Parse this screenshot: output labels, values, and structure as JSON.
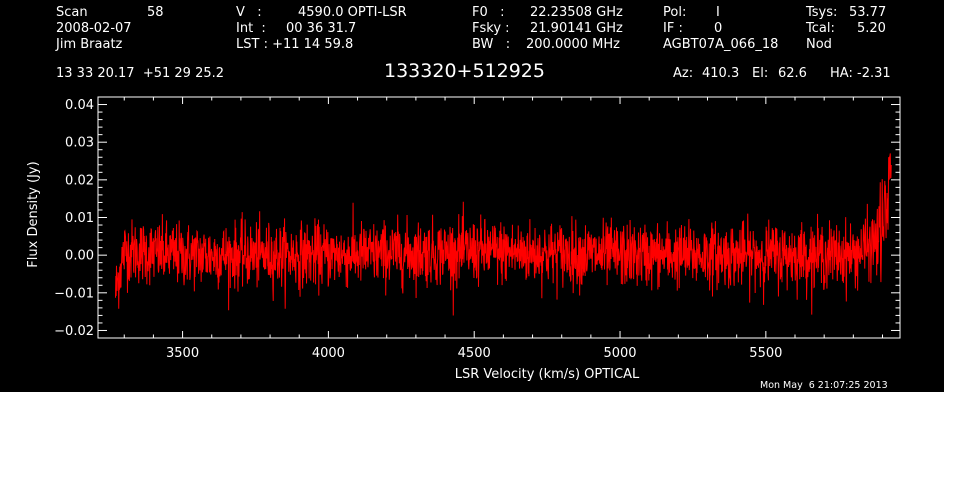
{
  "header": {
    "scan_label": "Scan",
    "scan_value": "58",
    "date": "2008-02-07",
    "observer": "Jim Braatz",
    "v_label": "V   :",
    "v_value": "4590.0 OPTI-LSR",
    "int_label": "Int  :",
    "int_value": "00 36 31.7",
    "lst_label": "LST : +11 14 59.8",
    "f0_label": "F0   :",
    "f0_value": "22.23508 GHz",
    "fsky_label": "Fsky :",
    "fsky_value": "21.90141 GHz",
    "bw_label": "BW   :",
    "bw_value": "200.0000 MHz",
    "pol_label": "Pol:",
    "pol_value": "I",
    "if_label": "IF :",
    "if_value": "0",
    "project": "AGBT07A_066_18",
    "tsys_label": "Tsys:",
    "tsys_value": "53.77",
    "tcal_label": "Tcal:",
    "tcal_value": "5.20",
    "procedure": "Nod",
    "coords": "13 33 20.17  +51 29 25.2",
    "source": "133320+512925",
    "az_label": "Az:",
    "az_value": "410.3",
    "el_label": "El:",
    "el_value": "62.6",
    "ha_label": "HA:",
    "ha_value": "-2.31"
  },
  "timestamp": "Mon May  6 21:07:25 2013",
  "colors": {
    "background": "#000000",
    "axes": "#ffffff",
    "trace": "#ff0000"
  },
  "chart_data": {
    "type": "line",
    "xlabel": "LSR Velocity (km/s) OPTICAL",
    "ylabel": "Flux Density (Jy)",
    "xlim": [
      3210,
      5960
    ],
    "ylim": [
      -0.022,
      0.042
    ],
    "x_ticks": [
      3500,
      4000,
      4500,
      5000,
      5500
    ],
    "x_tick_labels": [
      "3500",
      "4000",
      "4500",
      "5000",
      "5500"
    ],
    "y_ticks": [
      -0.02,
      -0.01,
      0.0,
      0.01,
      0.02,
      0.03,
      0.04
    ],
    "y_tick_labels": [
      "−0.02",
      "−0.01",
      "0.00",
      "0.01",
      "0.02",
      "0.03",
      "0.04"
    ],
    "grid": false,
    "series": [
      {
        "color": "#ff0000",
        "x_start": 3270,
        "x_end": 5930,
        "noise_rms": 0.0042,
        "envelope": [
          [
            3270,
            -0.01
          ],
          [
            3285,
            -0.004
          ],
          [
            3300,
            0.001
          ],
          [
            3330,
            0.001
          ],
          [
            3500,
            0.0
          ],
          [
            4000,
            0.0
          ],
          [
            4500,
            0.001
          ],
          [
            5000,
            0.0
          ],
          [
            5500,
            0.0
          ],
          [
            5800,
            0.0
          ],
          [
            5870,
            0.003
          ],
          [
            5900,
            0.007
          ],
          [
            5915,
            0.012
          ],
          [
            5930,
            0.02
          ]
        ]
      }
    ]
  }
}
